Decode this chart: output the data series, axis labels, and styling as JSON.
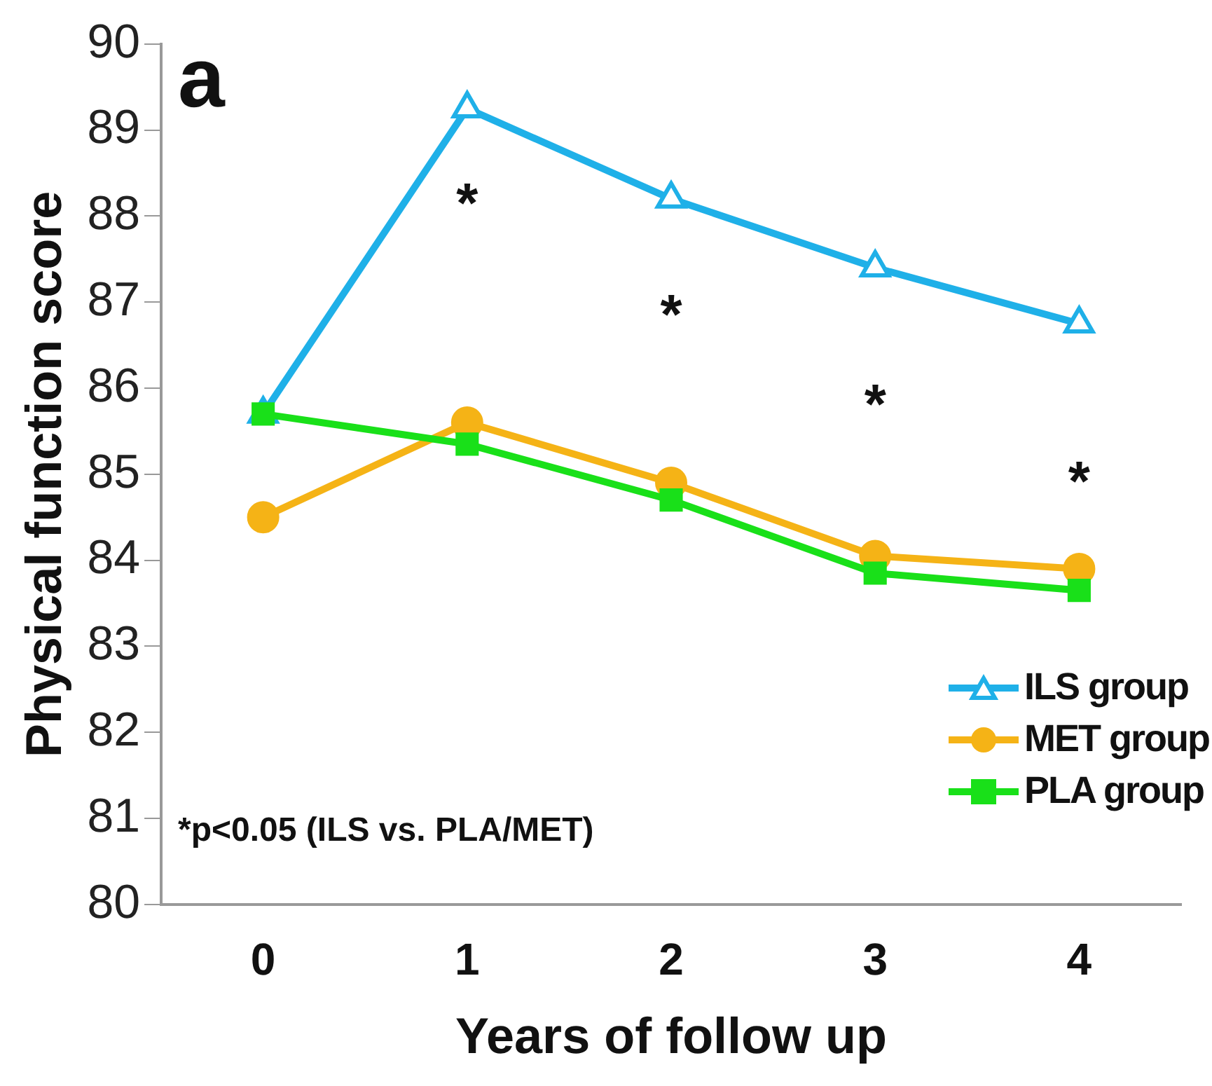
{
  "chart_data": {
    "type": "line",
    "xlabel": "Years of follow up",
    "ylabel": "Physical function score",
    "categories": [
      "0",
      "1",
      "2",
      "3",
      "4"
    ],
    "series": [
      {
        "name": "ILS group",
        "color": "#1fb0e8",
        "marker": "triangle",
        "values": [
          85.7,
          89.25,
          88.2,
          87.4,
          86.75
        ]
      },
      {
        "name": "MET group",
        "color": "#f5b316",
        "marker": "circle",
        "values": [
          84.5,
          85.6,
          84.9,
          84.05,
          83.9
        ]
      },
      {
        "name": "PLA group",
        "color": "#19e019",
        "marker": "square",
        "values": [
          85.7,
          85.35,
          84.7,
          83.85,
          83.65
        ]
      }
    ],
    "ylim": [
      80,
      90
    ],
    "yticks": [
      80,
      81,
      82,
      83,
      84,
      85,
      86,
      87,
      88,
      89,
      90
    ],
    "grid": false,
    "legend": "bottom right",
    "line_style": "solid",
    "annotations": [
      "a",
      "*p<0.05 (ILS vs. PLA/MET)",
      "*",
      "*",
      "*",
      "*"
    ]
  }
}
